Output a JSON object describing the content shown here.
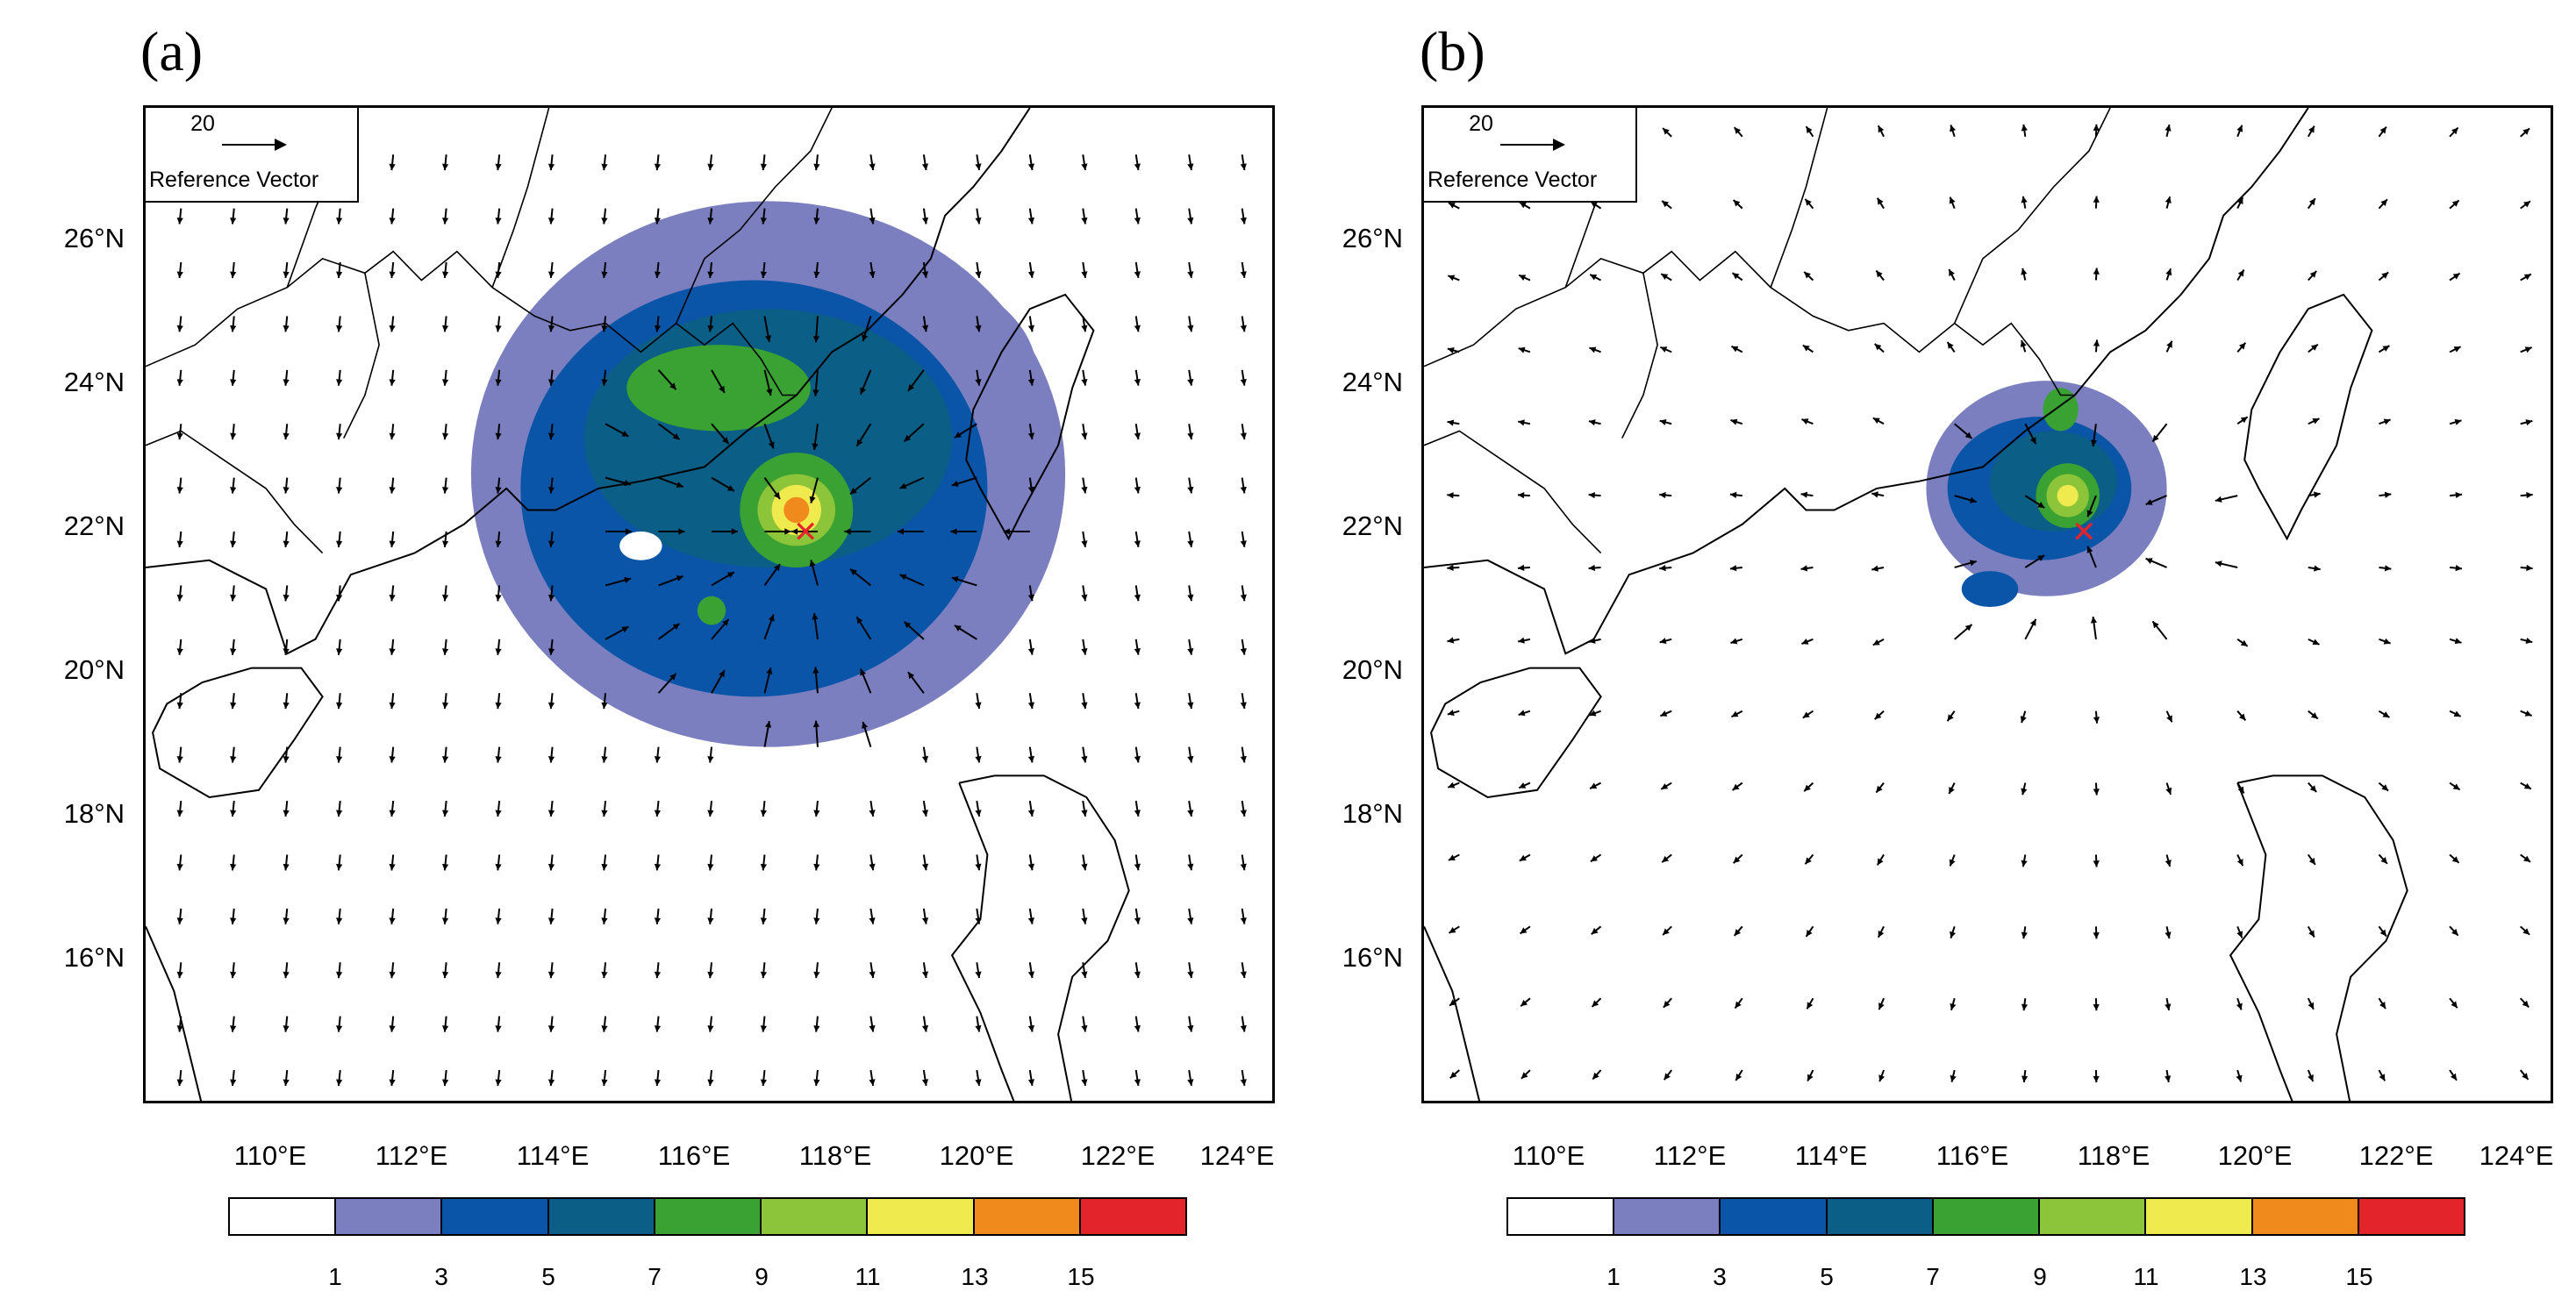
{
  "panels": [
    {
      "label": "(a)",
      "reference_vector": {
        "magnitude": "20",
        "label": "Reference Vector"
      },
      "lat_labels": [
        "26°N",
        "24°N",
        "22°N",
        "20°N",
        "18°N",
        "16°N"
      ],
      "lon_labels": [
        "110°E",
        "112°E",
        "114°E",
        "116°E",
        "118°E",
        "120°E",
        "122°E",
        "124°E"
      ]
    },
    {
      "label": "(b)",
      "reference_vector": {
        "magnitude": "20",
        "label": "Reference Vector"
      },
      "lat_labels": [
        "26°N",
        "24°N",
        "22°N",
        "20°N",
        "18°N",
        "16°N"
      ],
      "lon_labels": [
        "110°E",
        "112°E",
        "114°E",
        "116°E",
        "118°E",
        "120°E",
        "122°E",
        "124°E"
      ]
    }
  ],
  "colorbar": {
    "ticks": [
      "1",
      "3",
      "5",
      "7",
      "9",
      "11",
      "13",
      "15"
    ],
    "colors": [
      "#ffffff",
      "#7b7fbf",
      "#0a55a8",
      "#0b5e85",
      "#3aa133",
      "#8cc43a",
      "#efea4e",
      "#f08a1c",
      "#e3242b"
    ]
  },
  "map_extent": {
    "lon_min": 108.5,
    "lon_max": 124.5,
    "lat_min": 14,
    "lat_max": 27.9
  },
  "marker": {
    "symbol": "✕",
    "color": "#e3242b",
    "lon": 117.8,
    "lat": 22.0
  }
}
